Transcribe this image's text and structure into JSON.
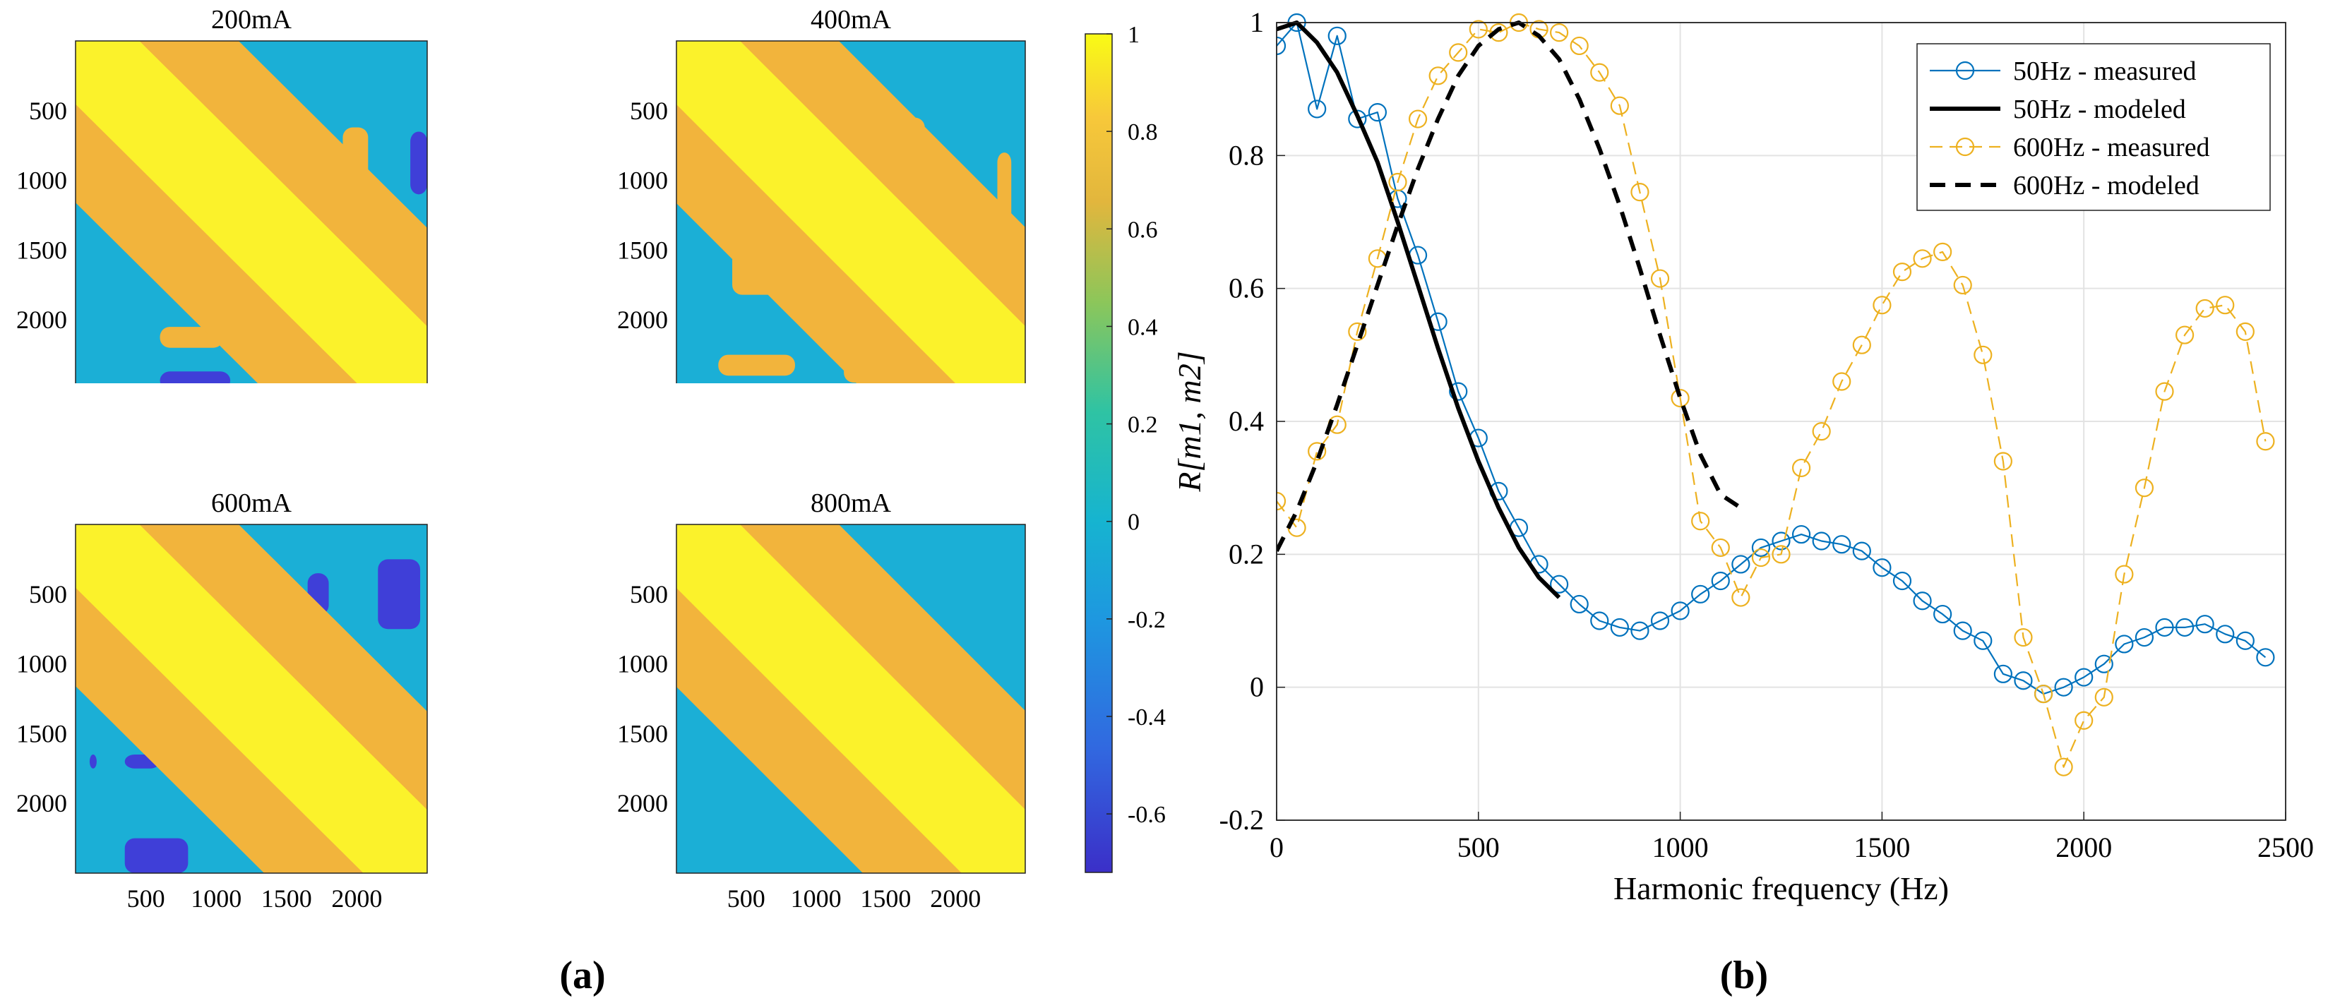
{
  "figure": {
    "label_a": "(a)",
    "label_b": "(b)"
  },
  "chart_data": [
    {
      "type": "heatmap",
      "panel": "a",
      "subplots": [
        {
          "title": "200mA",
          "xticks": [
            500,
            1000,
            1500,
            2000
          ],
          "yticks": [
            500,
            1000,
            1500,
            2000
          ]
        },
        {
          "title": "400mA",
          "xticks": [
            500,
            1000,
            1500,
            2000
          ],
          "yticks": [
            500,
            1000,
            1500,
            2000
          ]
        },
        {
          "title": "600mA",
          "xticks": [
            500,
            1000,
            1500,
            2000
          ],
          "yticks": [
            500,
            1000,
            1500,
            2000
          ]
        },
        {
          "title": "800mA",
          "xticks": [
            500,
            1000,
            1500,
            2000
          ],
          "yticks": [
            500,
            1000,
            1500,
            2000
          ]
        }
      ],
      "axis_range": [
        0,
        2500
      ],
      "colorbar": {
        "ticks": [
          1,
          0.8,
          0.6,
          0.4,
          0.2,
          0,
          -0.2,
          -0.4,
          -0.6
        ],
        "range": [
          -0.72,
          1.0
        ]
      },
      "colors": {
        "background": "#1BAFD6",
        "high": "#FBF22B",
        "mid": "#F2B43C",
        "low": "#3F3FD8"
      }
    },
    {
      "type": "line",
      "panel": "b",
      "xlabel": "Harmonic frequency (Hz)",
      "ylabel": "R[m1, m2]",
      "xlim": [
        0,
        2500
      ],
      "ylim": [
        -0.2,
        1.0
      ],
      "xticks": [
        0,
        500,
        1000,
        1500,
        2000,
        2500
      ],
      "yticks": [
        -0.2,
        0,
        0.2,
        0.4,
        0.6,
        0.8,
        1
      ],
      "grid": true,
      "legend_position": "top-right",
      "series": [
        {
          "name": "50Hz - measured",
          "color": "#0072BD",
          "style": "solid-marker",
          "x": [
            0,
            50,
            100,
            150,
            200,
            250,
            300,
            350,
            400,
            450,
            500,
            550,
            600,
            650,
            700,
            750,
            800,
            850,
            900,
            950,
            1000,
            1050,
            1100,
            1150,
            1200,
            1250,
            1300,
            1350,
            1400,
            1450,
            1500,
            1550,
            1600,
            1650,
            1700,
            1750,
            1800,
            1850,
            1900,
            1950,
            2000,
            2050,
            2100,
            2150,
            2200,
            2250,
            2300,
            2350,
            2400,
            2450
          ],
          "y": [
            0.965,
            1.0,
            0.87,
            0.98,
            0.855,
            0.865,
            0.735,
            0.65,
            0.55,
            0.445,
            0.375,
            0.295,
            0.24,
            0.185,
            0.155,
            0.125,
            0.1,
            0.09,
            0.085,
            0.1,
            0.115,
            0.14,
            0.16,
            0.185,
            0.21,
            0.22,
            0.23,
            0.22,
            0.215,
            0.205,
            0.18,
            0.16,
            0.13,
            0.11,
            0.085,
            0.07,
            0.02,
            0.01,
            -0.01,
            0.0,
            0.015,
            0.035,
            0.065,
            0.075,
            0.09,
            0.09,
            0.095,
            0.08,
            0.07,
            0.045
          ]
        },
        {
          "name": "50Hz - modeled",
          "color": "#000000",
          "style": "solid",
          "x": [
            0,
            50,
            100,
            150,
            200,
            250,
            300,
            350,
            400,
            450,
            500,
            550,
            600,
            650,
            700
          ],
          "y": [
            0.99,
            1.0,
            0.97,
            0.925,
            0.86,
            0.79,
            0.7,
            0.605,
            0.51,
            0.42,
            0.34,
            0.27,
            0.21,
            0.165,
            0.135
          ]
        },
        {
          "name": "600Hz - measured",
          "color": "#EDB120",
          "style": "dashed-marker",
          "x": [
            0,
            50,
            100,
            150,
            200,
            250,
            300,
            350,
            400,
            450,
            500,
            550,
            600,
            650,
            700,
            750,
            800,
            850,
            900,
            950,
            1000,
            1050,
            1100,
            1150,
            1200,
            1250,
            1300,
            1350,
            1400,
            1450,
            1500,
            1550,
            1600,
            1650,
            1700,
            1750,
            1800,
            1850,
            1900,
            1950,
            2000,
            2050,
            2100,
            2150,
            2200,
            2250,
            2300,
            2350,
            2400,
            2450
          ],
          "y": [
            0.28,
            0.24,
            0.355,
            0.395,
            0.535,
            0.645,
            0.76,
            0.855,
            0.92,
            0.955,
            0.99,
            0.985,
            1.0,
            0.99,
            0.985,
            0.965,
            0.925,
            0.875,
            0.745,
            0.615,
            0.435,
            0.25,
            0.21,
            0.135,
            0.195,
            0.2,
            0.33,
            0.385,
            0.46,
            0.515,
            0.575,
            0.625,
            0.645,
            0.655,
            0.605,
            0.5,
            0.34,
            0.075,
            -0.01,
            -0.12,
            -0.05,
            -0.015,
            0.17,
            0.3,
            0.445,
            0.53,
            0.57,
            0.575,
            0.535,
            0.37
          ]
        },
        {
          "name": "600Hz - modeled",
          "color": "#000000",
          "style": "dashed",
          "x": [
            0,
            50,
            100,
            150,
            200,
            250,
            300,
            350,
            400,
            450,
            500,
            550,
            600,
            650,
            700,
            750,
            800,
            850,
            900,
            950,
            1000,
            1050,
            1100,
            1150
          ],
          "y": [
            0.205,
            0.265,
            0.34,
            0.425,
            0.515,
            0.605,
            0.695,
            0.78,
            0.855,
            0.92,
            0.965,
            0.99,
            1.0,
            0.98,
            0.945,
            0.885,
            0.81,
            0.725,
            0.63,
            0.53,
            0.435,
            0.35,
            0.29,
            0.27
          ]
        }
      ]
    }
  ]
}
